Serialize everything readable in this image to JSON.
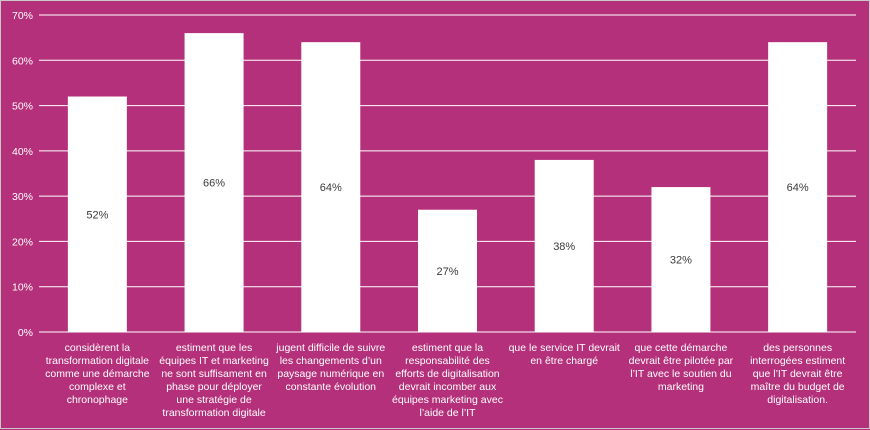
{
  "chart_data": {
    "type": "bar",
    "categories": [
      "considèrent la transformation digitale comme une démarche complexe et chronophage",
      "estiment que les équipes IT et marketing ne sont suffisament en phase pour déployer une stratégie de transformation digitale",
      "jugent difficile de suivre les changements d’un paysage numérique en constante évolution",
      "estiment que la responsabilité des efforts de digitalisation devrait incomber aux équipes marketing avec l’aide de l’IT",
      "que le service IT devrait en être chargé",
      "que cette démarche devrait être pilotée par l’IT avec le soutien du marketing",
      "des personnes interrogées estiment que l’IT devrait être maître du budget de digitalisation."
    ],
    "values": [
      52,
      66,
      64,
      27,
      38,
      32,
      64
    ],
    "data_labels": [
      "52%",
      "66%",
      "64%",
      "27%",
      "38%",
      "32%",
      "64%"
    ],
    "y_ticks": [
      "0%",
      "10%",
      "20%",
      "30%",
      "40%",
      "50%",
      "60%",
      "70%"
    ],
    "ylim": [
      0,
      70
    ],
    "grid": true,
    "legend": "none",
    "colors": {
      "background": "#b5307a",
      "bar": "#ffffff",
      "grid": "#ffffff",
      "text": "#ffffff",
      "data_label": "#3a3a3a"
    }
  }
}
